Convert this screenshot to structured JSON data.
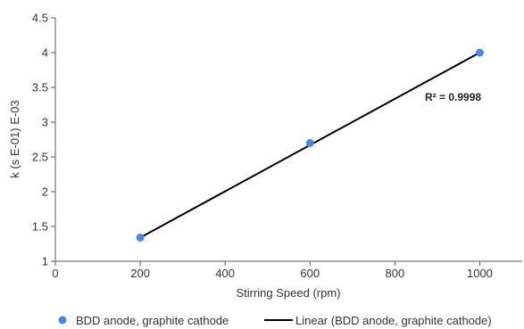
{
  "chart_data": {
    "type": "scatter",
    "x": [
      200,
      600,
      1000
    ],
    "y": [
      1.34,
      2.7,
      4.0
    ],
    "xlim": [
      0,
      1100
    ],
    "ylim": [
      1,
      4.5
    ],
    "xticks": [
      "0",
      "200",
      "400",
      "600",
      "800",
      "1000"
    ],
    "yticks": [
      "1",
      "1.5",
      "2",
      "2.5",
      "3",
      "3.5",
      "4",
      "4.5"
    ],
    "xlabel": "Stirring Speed (rpm)",
    "ylabel": "k (s E-01) E-03",
    "series": [
      {
        "name": "BDD anode, graphite cathode",
        "kind": "points",
        "color": "#4a86e8"
      },
      {
        "name": "Linear (BDD anode, graphite cathode)",
        "kind": "trendline",
        "color": "#000000"
      }
    ],
    "trendline": {
      "x": [
        200,
        1000
      ],
      "y": [
        1.34,
        4.0
      ]
    },
    "annotation": "R² = 0.9998",
    "grid": false,
    "legend_position": "bottom"
  }
}
